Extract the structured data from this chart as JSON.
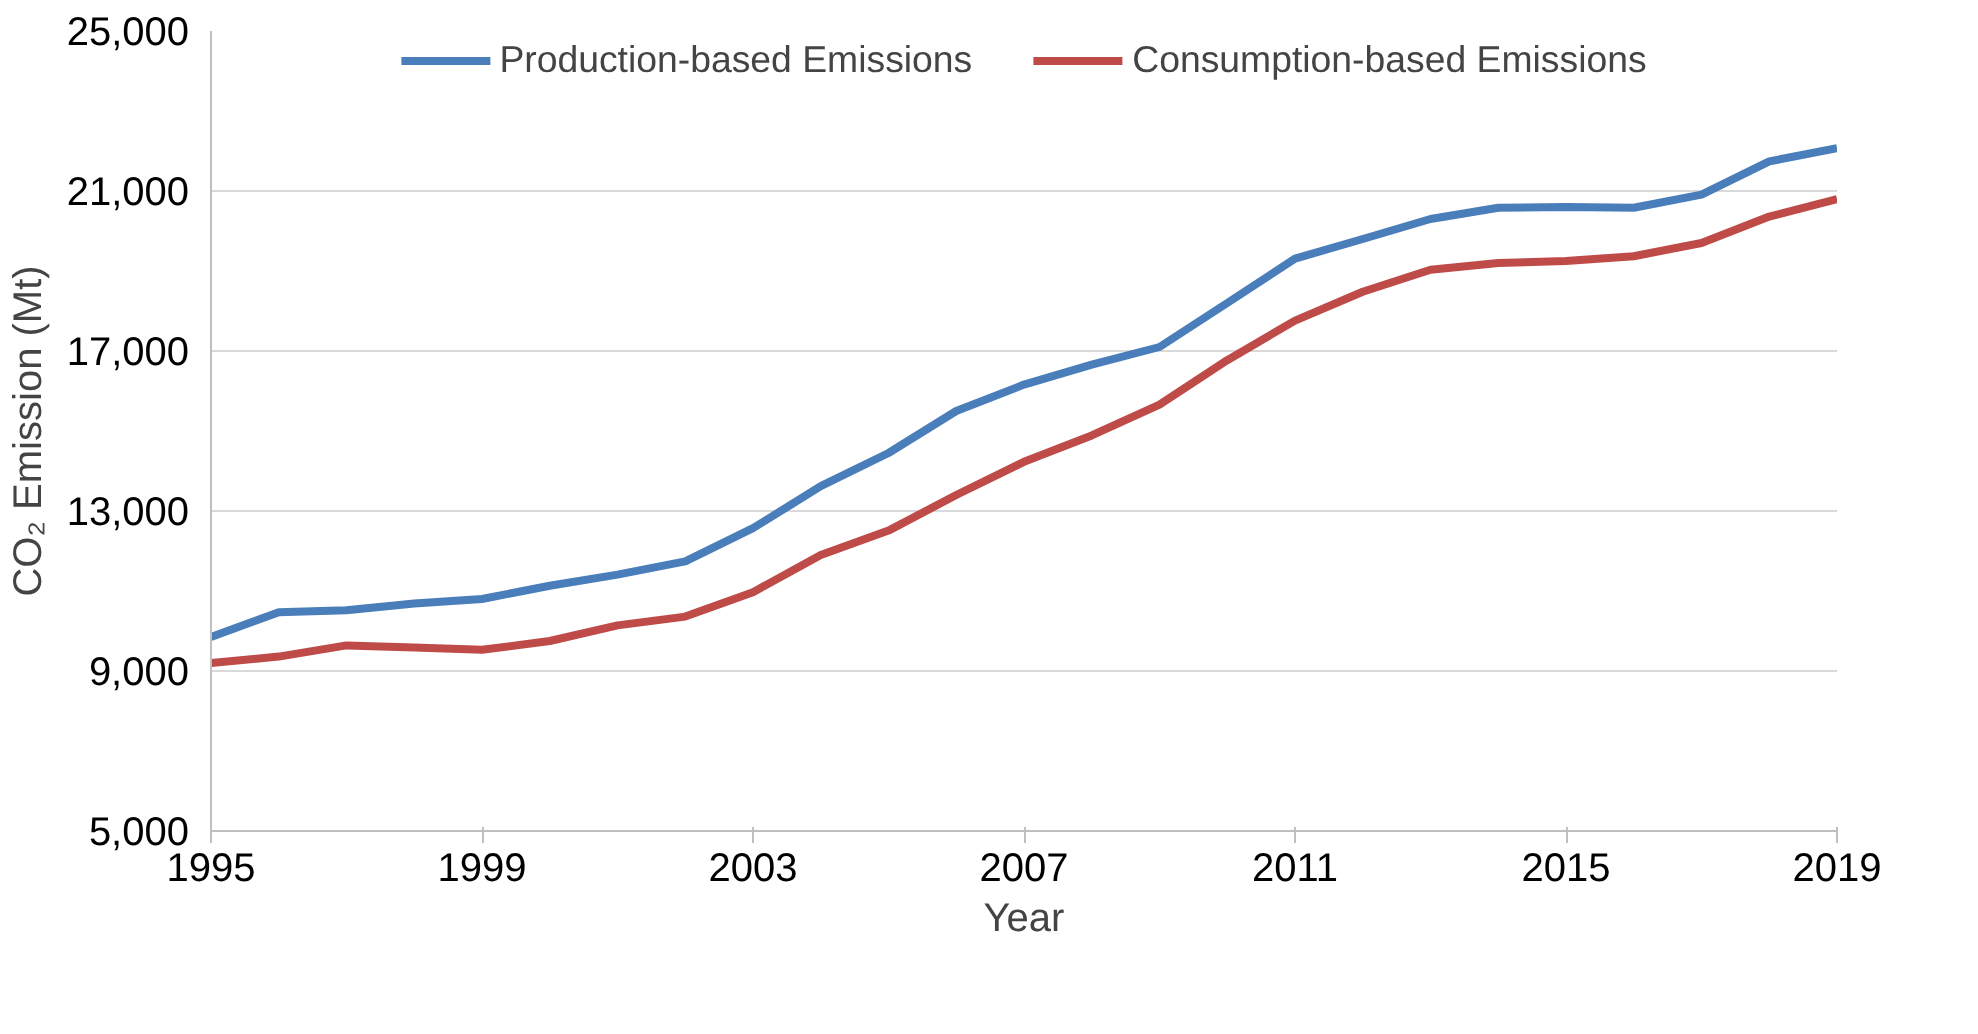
{
  "chart_data": {
    "type": "line",
    "xlabel": "Year",
    "ylabel": "CO₂ Emission (Mt)",
    "x": [
      1995,
      1996,
      1997,
      1998,
      1999,
      2000,
      2001,
      2002,
      2003,
      2004,
      2005,
      2006,
      2007,
      2008,
      2009,
      2010,
      2011,
      2012,
      2013,
      2014,
      2015,
      2016,
      2017,
      2018,
      2019
    ],
    "series": [
      {
        "name": "Production-based Emissions",
        "color": "#4a7ebb",
        "values": [
          9850,
          10470,
          10520,
          10690,
          10800,
          11130,
          11410,
          11740,
          12570,
          13620,
          14450,
          15500,
          16160,
          16660,
          17100,
          18200,
          19310,
          19800,
          20300,
          20580,
          20600,
          20580,
          20910,
          21740,
          22070
        ]
      },
      {
        "name": "Consumption-based Emissions",
        "color": "#be4b48",
        "values": [
          9200,
          9360,
          9640,
          9590,
          9530,
          9750,
          10140,
          10360,
          10970,
          11900,
          12510,
          13400,
          14230,
          14890,
          15660,
          16770,
          17760,
          18480,
          19030,
          19200,
          19250,
          19370,
          19700,
          20360,
          20800
        ]
      }
    ],
    "xlim": [
      1995,
      2019
    ],
    "xticks": [
      1995,
      1999,
      2003,
      2007,
      2011,
      2015,
      2019
    ],
    "ylim": [
      5000,
      25000
    ],
    "yticks": [
      {
        "value": 5000,
        "label": "5,000"
      },
      {
        "value": 9000,
        "label": "9,000"
      },
      {
        "value": 13000,
        "label": "13,000"
      },
      {
        "value": 17000,
        "label": "17,000"
      },
      {
        "value": 21000,
        "label": "21,000"
      },
      {
        "value": 25000,
        "label": "25,000"
      }
    ],
    "grid": "y",
    "legend": "top",
    "marker": "none",
    "line_style": "solid"
  }
}
